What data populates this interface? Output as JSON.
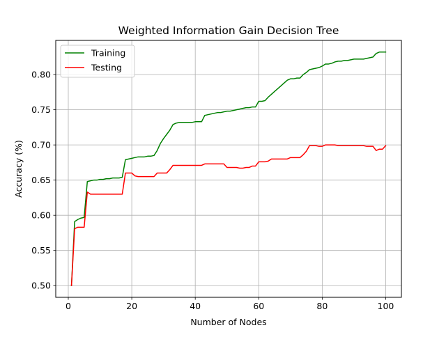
{
  "chart_data": {
    "type": "line",
    "title": "Weighted Information Gain Decision Tree",
    "xlabel": "Number of Nodes",
    "ylabel": "Accuracy (%)",
    "xlim": [
      -3.95,
      104.95
    ],
    "ylim": [
      0.4834,
      0.8486
    ],
    "xticks": [
      0,
      20,
      40,
      60,
      80,
      100
    ],
    "xtick_labels": [
      "0",
      "20",
      "40",
      "60",
      "80",
      "100"
    ],
    "yticks": [
      0.5,
      0.55,
      0.6,
      0.65,
      0.7,
      0.75,
      0.8
    ],
    "ytick_labels": [
      "0.50",
      "0.55",
      "0.60",
      "0.65",
      "0.70",
      "0.75",
      "0.80"
    ],
    "grid": true,
    "legend_position": "upper left",
    "series": [
      {
        "name": "Training",
        "color": "#008000",
        "x": [
          1,
          2,
          3,
          4,
          5,
          6,
          7,
          8,
          9,
          10,
          11,
          12,
          13,
          14,
          15,
          16,
          17,
          18,
          19,
          20,
          21,
          22,
          23,
          24,
          25,
          26,
          27,
          28,
          29,
          30,
          31,
          32,
          33,
          34,
          35,
          36,
          37,
          38,
          39,
          40,
          41,
          42,
          43,
          44,
          45,
          46,
          47,
          48,
          49,
          50,
          51,
          52,
          53,
          54,
          55,
          56,
          57,
          58,
          59,
          60,
          61,
          62,
          63,
          64,
          65,
          66,
          67,
          68,
          69,
          70,
          71,
          72,
          73,
          74,
          75,
          76,
          77,
          78,
          79,
          80,
          81,
          82,
          83,
          84,
          85,
          86,
          87,
          88,
          89,
          90,
          91,
          92,
          93,
          94,
          95,
          96,
          97,
          98,
          99,
          100
        ],
        "values": [
          0.5,
          0.591,
          0.594,
          0.596,
          0.597,
          0.648,
          0.649,
          0.65,
          0.65,
          0.651,
          0.651,
          0.652,
          0.652,
          0.653,
          0.653,
          0.653,
          0.654,
          0.679,
          0.68,
          0.681,
          0.682,
          0.683,
          0.683,
          0.683,
          0.684,
          0.684,
          0.685,
          0.692,
          0.702,
          0.709,
          0.715,
          0.721,
          0.729,
          0.731,
          0.732,
          0.732,
          0.732,
          0.732,
          0.732,
          0.733,
          0.733,
          0.733,
          0.742,
          0.743,
          0.744,
          0.745,
          0.746,
          0.746,
          0.747,
          0.748,
          0.748,
          0.749,
          0.75,
          0.751,
          0.752,
          0.753,
          0.753,
          0.754,
          0.754,
          0.762,
          0.762,
          0.763,
          0.768,
          0.772,
          0.776,
          0.78,
          0.784,
          0.788,
          0.792,
          0.794,
          0.794,
          0.795,
          0.795,
          0.8,
          0.803,
          0.807,
          0.808,
          0.809,
          0.81,
          0.812,
          0.815,
          0.815,
          0.816,
          0.818,
          0.819,
          0.819,
          0.82,
          0.82,
          0.821,
          0.822,
          0.822,
          0.822,
          0.822,
          0.823,
          0.824,
          0.825,
          0.83,
          0.832,
          0.832,
          0.832
        ]
      },
      {
        "name": "Testing",
        "color": "#ff0000",
        "x": [
          1,
          2,
          3,
          4,
          5,
          6,
          7,
          8,
          9,
          10,
          11,
          12,
          13,
          14,
          15,
          16,
          17,
          18,
          19,
          20,
          21,
          22,
          23,
          24,
          25,
          26,
          27,
          28,
          29,
          30,
          31,
          32,
          33,
          34,
          35,
          36,
          37,
          38,
          39,
          40,
          41,
          42,
          43,
          44,
          45,
          46,
          47,
          48,
          49,
          50,
          51,
          52,
          53,
          54,
          55,
          56,
          57,
          58,
          59,
          60,
          61,
          62,
          63,
          64,
          65,
          66,
          67,
          68,
          69,
          70,
          71,
          72,
          73,
          74,
          75,
          76,
          77,
          78,
          79,
          80,
          81,
          82,
          83,
          84,
          85,
          86,
          87,
          88,
          89,
          90,
          91,
          92,
          93,
          94,
          95,
          96,
          97,
          98,
          99,
          100
        ],
        "values": [
          0.5,
          0.581,
          0.583,
          0.583,
          0.583,
          0.633,
          0.63,
          0.63,
          0.63,
          0.63,
          0.63,
          0.63,
          0.63,
          0.63,
          0.63,
          0.63,
          0.63,
          0.66,
          0.66,
          0.66,
          0.656,
          0.655,
          0.655,
          0.655,
          0.655,
          0.655,
          0.655,
          0.66,
          0.66,
          0.66,
          0.66,
          0.665,
          0.671,
          0.671,
          0.671,
          0.671,
          0.671,
          0.671,
          0.671,
          0.671,
          0.671,
          0.671,
          0.673,
          0.673,
          0.673,
          0.673,
          0.673,
          0.673,
          0.673,
          0.668,
          0.668,
          0.668,
          0.668,
          0.667,
          0.667,
          0.668,
          0.668,
          0.67,
          0.67,
          0.676,
          0.676,
          0.676,
          0.677,
          0.68,
          0.68,
          0.68,
          0.68,
          0.68,
          0.68,
          0.682,
          0.682,
          0.682,
          0.682,
          0.686,
          0.691,
          0.699,
          0.699,
          0.699,
          0.698,
          0.698,
          0.7,
          0.7,
          0.7,
          0.7,
          0.699,
          0.699,
          0.699,
          0.699,
          0.699,
          0.699,
          0.699,
          0.699,
          0.699,
          0.698,
          0.698,
          0.698,
          0.692,
          0.694,
          0.694,
          0.699
        ]
      }
    ]
  }
}
